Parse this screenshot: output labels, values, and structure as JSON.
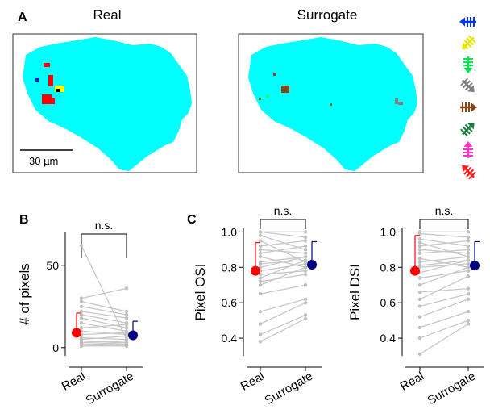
{
  "panel_labels": {
    "a": "A",
    "b": "B",
    "c": "C"
  },
  "maps": {
    "real_title": "Real",
    "surrogate_title": "Surrogate",
    "scale_bar_label": "30 µm",
    "background_color": "#00ffff",
    "real_patches": [
      {
        "color": "#ff0000",
        "label": "red"
      },
      {
        "color": "#ffff00",
        "label": "yellow"
      },
      {
        "color": "#0000ff",
        "label": "blue"
      }
    ],
    "surrogate_patches": [
      {
        "color": "#8b4513",
        "label": "brown"
      },
      {
        "color": "#808080",
        "label": "gray"
      },
      {
        "color": "#1a7f3c",
        "label": "dark-green"
      },
      {
        "color": "#33ff33",
        "label": "green"
      }
    ]
  },
  "direction_icons": [
    {
      "name": "left-arrow-icon",
      "color": "#0033ff"
    },
    {
      "name": "down-left-arrow-icon",
      "color": "#e6e600"
    },
    {
      "name": "down-arrow-icon",
      "color": "#00e64d"
    },
    {
      "name": "down-right-arrow-icon",
      "color": "#808080"
    },
    {
      "name": "right-arrow-icon",
      "color": "#8b4513"
    },
    {
      "name": "up-right-arrow-icon",
      "color": "#1a7f3c"
    },
    {
      "name": "up-arrow-icon",
      "color": "#ff33cc"
    },
    {
      "name": "up-left-arrow-icon",
      "color": "#ff1a1a"
    }
  ],
  "chart_data": [
    {
      "type": "scatter",
      "panel": "B",
      "ylabel": "# of pixels",
      "categories": [
        "Real",
        "Surrogate"
      ],
      "ylim": [
        -5,
        70
      ],
      "yticks": [
        0,
        50
      ],
      "significance": "n.s.",
      "pairs": [
        [
          62,
          5
        ],
        [
          30,
          36
        ],
        [
          28,
          22
        ],
        [
          25,
          20
        ],
        [
          22,
          18
        ],
        [
          20,
          15
        ],
        [
          18,
          12
        ],
        [
          15,
          10
        ],
        [
          12,
          14
        ],
        [
          10,
          8
        ],
        [
          8,
          9
        ],
        [
          6,
          5
        ],
        [
          5,
          7
        ],
        [
          4,
          3
        ],
        [
          3,
          4
        ],
        [
          2,
          2
        ],
        [
          2,
          3
        ],
        [
          1,
          1
        ],
        [
          1,
          2
        ],
        [
          1,
          1
        ]
      ],
      "means": [
        9,
        7.5
      ],
      "sd_upper": [
        21,
        16
      ],
      "series_colors": [
        "#ff0000",
        "#000080"
      ]
    },
    {
      "type": "scatter",
      "panel": "C",
      "ylabel": "Pixel OSI",
      "categories": [
        "Real",
        "Surrogate"
      ],
      "ylim": [
        0.3,
        1.02
      ],
      "yticks": [
        0.4,
        0.6,
        0.8,
        1.0
      ],
      "significance": "n.s.",
      "pairs": [
        [
          1.0,
          1.0
        ],
        [
          1.0,
          0.97
        ],
        [
          0.98,
          0.9
        ],
        [
          0.95,
          0.83
        ],
        [
          0.92,
          0.95
        ],
        [
          0.9,
          0.88
        ],
        [
          0.88,
          0.92
        ],
        [
          0.86,
          0.8
        ],
        [
          0.83,
          0.86
        ],
        [
          0.82,
          0.84
        ],
        [
          0.8,
          0.86
        ],
        [
          0.78,
          0.82
        ],
        [
          0.76,
          0.78
        ],
        [
          0.74,
          0.84
        ],
        [
          0.72,
          0.76
        ],
        [
          0.7,
          0.8
        ],
        [
          0.65,
          0.7
        ],
        [
          0.55,
          0.62
        ],
        [
          0.48,
          0.6
        ],
        [
          0.42,
          0.53
        ],
        [
          0.38,
          0.51
        ]
      ],
      "means": [
        0.78,
        0.815
      ],
      "sd_upper": [
        0.94,
        0.945
      ],
      "series_colors": [
        "#ff0000",
        "#000080"
      ]
    },
    {
      "type": "scatter",
      "panel": "C",
      "ylabel": "Pixel DSI",
      "categories": [
        "Real",
        "Surrogate"
      ],
      "ylim": [
        0.3,
        1.02
      ],
      "yticks": [
        0.4,
        0.6,
        0.8,
        1.0
      ],
      "significance": "n.s.",
      "pairs": [
        [
          1.0,
          1.0
        ],
        [
          0.99,
          0.97
        ],
        [
          0.96,
          0.92
        ],
        [
          0.94,
          0.86
        ],
        [
          0.92,
          0.95
        ],
        [
          0.9,
          0.88
        ],
        [
          0.88,
          0.9
        ],
        [
          0.85,
          0.8
        ],
        [
          0.83,
          0.86
        ],
        [
          0.81,
          0.84
        ],
        [
          0.8,
          0.82
        ],
        [
          0.77,
          0.84
        ],
        [
          0.74,
          0.78
        ],
        [
          0.7,
          0.8
        ],
        [
          0.66,
          0.68
        ],
        [
          0.62,
          0.75
        ],
        [
          0.58,
          0.65
        ],
        [
          0.52,
          0.62
        ],
        [
          0.46,
          0.55
        ],
        [
          0.4,
          0.5
        ],
        [
          0.31,
          0.48
        ]
      ],
      "means": [
        0.78,
        0.81
      ],
      "sd_upper": [
        0.98,
        0.945
      ],
      "series_colors": [
        "#ff0000",
        "#000080"
      ]
    }
  ]
}
